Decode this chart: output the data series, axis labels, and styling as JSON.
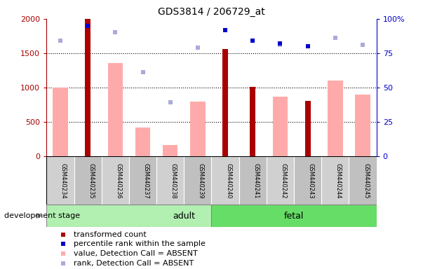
{
  "title": "GDS3814 / 206729_at",
  "samples": [
    "GSM440234",
    "GSM440235",
    "GSM440236",
    "GSM440237",
    "GSM440238",
    "GSM440239",
    "GSM440240",
    "GSM440241",
    "GSM440242",
    "GSM440243",
    "GSM440244",
    "GSM440245"
  ],
  "transformed_count": [
    null,
    2000,
    null,
    null,
    null,
    null,
    1560,
    1010,
    null,
    800,
    null,
    null
  ],
  "percentile_rank": [
    null,
    95,
    null,
    null,
    null,
    null,
    92,
    84,
    82,
    80,
    null,
    null
  ],
  "absent_value": [
    1000,
    null,
    1360,
    420,
    160,
    790,
    null,
    null,
    870,
    null,
    1100,
    900
  ],
  "absent_rank": [
    84,
    null,
    90,
    61,
    39,
    79,
    null,
    84,
    81,
    null,
    86,
    81
  ],
  "groups": [
    "adult",
    "adult",
    "adult",
    "adult",
    "adult",
    "adult",
    "fetal",
    "fetal",
    "fetal",
    "fetal",
    "fetal",
    "fetal"
  ],
  "adult_color": "#b2f0b2",
  "fetal_color": "#66dd66",
  "bar_color_red": "#aa0000",
  "bar_color_pink": "#ffaaaa",
  "dot_color_blue": "#0000cc",
  "dot_color_lightblue": "#aaaadd",
  "left_ylim": [
    0,
    2000
  ],
  "right_ylim": [
    0,
    100
  ],
  "left_yticks": [
    0,
    500,
    1000,
    1500,
    2000
  ],
  "right_yticks": [
    0,
    25,
    50,
    75,
    100
  ],
  "left_yticklabels": [
    "0",
    "500",
    "1000",
    "1500",
    "2000"
  ],
  "right_yticklabels": [
    "0",
    "25",
    "50",
    "75",
    "100%"
  ],
  "legend_items": [
    {
      "label": "transformed count",
      "color": "#aa0000",
      "type": "bar"
    },
    {
      "label": "percentile rank within the sample",
      "color": "#0000cc",
      "type": "dot"
    },
    {
      "label": "value, Detection Call = ABSENT",
      "color": "#ffaaaa",
      "type": "bar"
    },
    {
      "label": "rank, Detection Call = ABSENT",
      "color": "#aaaadd",
      "type": "dot"
    }
  ],
  "dev_stage_label": "development stage",
  "figsize": [
    6.03,
    3.84
  ],
  "dpi": 100
}
